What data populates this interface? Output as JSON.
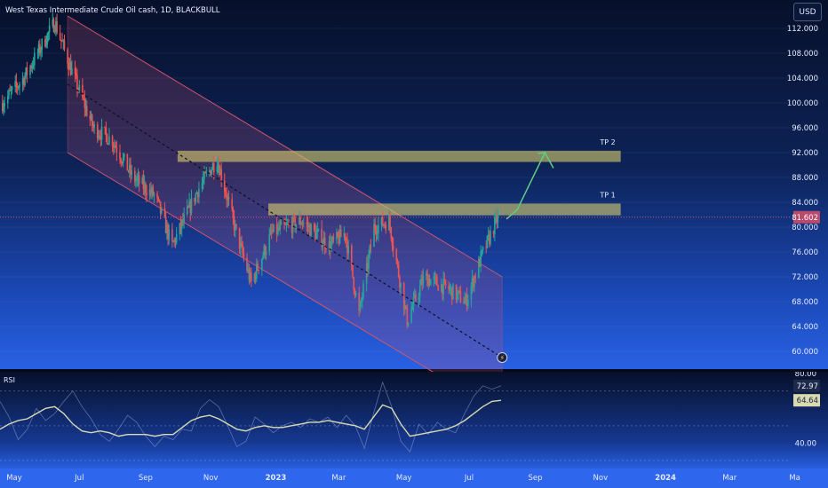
{
  "header": {
    "symbol_title": "West Texas Intermediate Crude Oil cash, 1D, BLACKBULL",
    "currency": "USD",
    "rsi_label": "RSI"
  },
  "chart_data": [
    {
      "type": "candlestick",
      "title": "West Texas Intermediate Crude Oil cash, 1D, BLACKBULL",
      "ylim": [
        57,
        114
      ],
      "y_ticks": [
        "112.000",
        "108.000",
        "104.000",
        "100.000",
        "96.000",
        "92.000",
        "88.000",
        "84.000",
        "80.000",
        "76.000",
        "72.000",
        "68.000",
        "64.000",
        "60.000"
      ],
      "y_tick_values": [
        112,
        108,
        104,
        100,
        96,
        92,
        88,
        84,
        80,
        76,
        72,
        68,
        64,
        60
      ],
      "x_ticks": [
        "May",
        "Jul",
        "Sep",
        "Nov",
        "2023",
        "Mar",
        "May",
        "Jul",
        "Sep",
        "Nov",
        "2024",
        "Mar",
        "Ma"
      ],
      "x_tick_dates": [
        "2022-05-01",
        "2022-07-01",
        "2022-09-01",
        "2022-11-01",
        "2023-01-01",
        "2023-03-01",
        "2023-05-01",
        "2023-07-01",
        "2023-09-01",
        "2023-11-01",
        "2024-01-01",
        "2024-03-01",
        "2024-05-01"
      ],
      "current_price": {
        "value": 81.602,
        "label": "81.602"
      },
      "price_path_anchors": [
        {
          "date": "2022-04-20",
          "price": 100
        },
        {
          "date": "2022-05-10",
          "price": 104
        },
        {
          "date": "2022-06-08",
          "price": 113
        },
        {
          "date": "2022-06-22",
          "price": 106
        },
        {
          "date": "2022-07-14",
          "price": 96
        },
        {
          "date": "2022-08-01",
          "price": 94
        },
        {
          "date": "2022-08-20",
          "price": 88
        },
        {
          "date": "2022-09-10",
          "price": 85
        },
        {
          "date": "2022-09-26",
          "price": 77
        },
        {
          "date": "2022-10-20",
          "price": 86
        },
        {
          "date": "2022-11-07",
          "price": 91
        },
        {
          "date": "2022-11-25",
          "price": 79
        },
        {
          "date": "2022-12-09",
          "price": 71
        },
        {
          "date": "2022-12-28",
          "price": 79
        },
        {
          "date": "2023-01-25",
          "price": 81
        },
        {
          "date": "2023-02-20",
          "price": 77
        },
        {
          "date": "2023-03-07",
          "price": 79
        },
        {
          "date": "2023-03-20",
          "price": 66
        },
        {
          "date": "2023-04-03",
          "price": 80
        },
        {
          "date": "2023-04-17",
          "price": 81
        },
        {
          "date": "2023-05-04",
          "price": 65
        },
        {
          "date": "2023-05-20",
          "price": 72
        },
        {
          "date": "2023-06-12",
          "price": 70
        },
        {
          "date": "2023-06-28",
          "price": 68
        },
        {
          "date": "2023-07-12",
          "price": 75
        },
        {
          "date": "2023-07-28",
          "price": 81.6
        }
      ],
      "annotations": [
        {
          "type": "zone",
          "label": "TP 2",
          "price_low": 90.5,
          "price_high": 92.3,
          "start": "2022-10-01",
          "end": "2023-11-20",
          "color": "#d4c86a"
        },
        {
          "type": "zone",
          "label": "TP 1",
          "price_low": 81.9,
          "price_high": 83.8,
          "start": "2022-12-25",
          "end": "2023-11-20",
          "color": "#d4c86a"
        },
        {
          "type": "channel",
          "upper": [
            {
              "date": "2022-06-20",
              "price": 114
            },
            {
              "date": "2023-08-01",
              "price": 72
            }
          ],
          "lower": [
            {
              "date": "2022-06-20",
              "price": 92
            },
            {
              "date": "2023-08-01",
              "price": 50
            }
          ],
          "color": "#d2556a"
        },
        {
          "type": "trendline",
          "style": "dashed",
          "from": {
            "date": "2022-06-20",
            "price": 103
          },
          "to": {
            "date": "2023-08-01",
            "price": 59
          }
        },
        {
          "type": "arrow_path",
          "color": "#5fd07a",
          "points": [
            {
              "date": "2023-08-05",
              "price": 81.3
            },
            {
              "date": "2023-08-15",
              "price": 82.8
            },
            {
              "date": "2023-09-10",
              "price": 92
            },
            {
              "date": "2023-09-18",
              "price": 89.5
            }
          ]
        }
      ]
    },
    {
      "type": "line",
      "title": "RSI",
      "ylim": [
        29,
        78
      ],
      "y_ticks": [
        "80.00",
        "40.00"
      ],
      "y_tick_values": [
        80,
        40
      ],
      "levels": [
        70,
        50,
        30
      ],
      "value_labels": [
        {
          "label": "72.97",
          "value": 72.97,
          "color": "#1d2a4a"
        },
        {
          "label": "64.64",
          "value": 64.64,
          "color": "#d8dbb0"
        }
      ],
      "series": [
        {
          "values": [
            64,
            55,
            42,
            48,
            60,
            53,
            57,
            64,
            70,
            61,
            54,
            45,
            41,
            48,
            56,
            52,
            44,
            38,
            44,
            42,
            48,
            47,
            60,
            65,
            61,
            50,
            38,
            41,
            55,
            51,
            46,
            50,
            52,
            49,
            54,
            52,
            55,
            49,
            56,
            50,
            37,
            57,
            75,
            61,
            41,
            35,
            51,
            45,
            52,
            48,
            46,
            57,
            67,
            73,
            71,
            73
          ]
        },
        {
          "values": [
            48,
            51,
            53,
            54,
            57,
            60,
            61,
            57,
            51,
            47,
            46,
            47,
            46,
            44,
            45,
            45,
            45,
            44,
            45,
            45,
            49,
            53,
            55,
            56,
            54,
            51,
            48,
            47,
            49,
            50,
            49,
            49,
            50,
            51,
            52,
            52,
            53,
            52,
            51,
            50,
            48,
            55,
            62,
            60,
            51,
            44,
            45,
            46,
            47,
            48,
            50,
            53,
            57,
            61,
            64,
            64.64
          ]
        }
      ]
    }
  ],
  "colors": {
    "up": "#26a69a",
    "down": "#ef5350",
    "zone": "#d4c86a",
    "channel": "#d2556a",
    "arrow": "#5fd07a",
    "rsi_line": "#d8dbb0",
    "rsi_raw": "#9aa9d8"
  },
  "icons": {
    "lightning_marker": "lightning-icon"
  }
}
